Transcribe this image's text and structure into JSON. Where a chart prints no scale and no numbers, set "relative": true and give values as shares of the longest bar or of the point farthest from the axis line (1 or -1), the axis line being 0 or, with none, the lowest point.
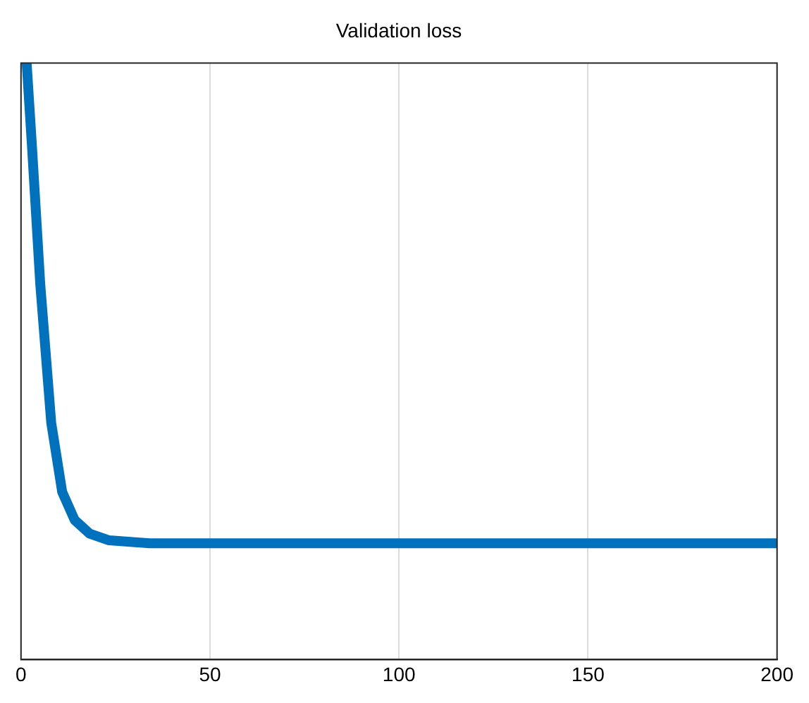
{
  "chart_data": {
    "type": "line",
    "title": "Validation loss",
    "relative": true,
    "series": [
      {
        "color": "#0072bd",
        "x": [
          1.5,
          2.9,
          5.1,
          8,
          10.9,
          14.2,
          18.2,
          23.3,
          34,
          60,
          100,
          150,
          200
        ],
        "values": [
          1.0,
          0.861,
          0.629,
          0.397,
          0.281,
          0.234,
          0.211,
          0.2,
          0.195,
          0.195,
          0.195,
          0.195,
          0.195
        ]
      }
    ],
    "xlim": [
      0,
      200
    ],
    "xticks": [
      0,
      50,
      100,
      150,
      200
    ],
    "grid": "x",
    "legend": false,
    "marker": "none",
    "line_style": "solid"
  }
}
